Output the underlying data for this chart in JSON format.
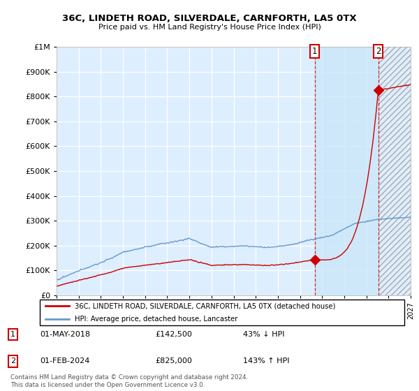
{
  "title": "36C, LINDETH ROAD, SILVERDALE, CARNFORTH, LA5 0TX",
  "subtitle": "Price paid vs. HM Land Registry's House Price Index (HPI)",
  "legend_label_red": "36C, LINDETH ROAD, SILVERDALE, CARNFORTH, LA5 0TX (detached house)",
  "legend_label_blue": "HPI: Average price, detached house, Lancaster",
  "annotation1_num": "1",
  "annotation1_date": "01-MAY-2018",
  "annotation1_price": "£142,500",
  "annotation1_pct": "43% ↓ HPI",
  "annotation2_num": "2",
  "annotation2_date": "01-FEB-2024",
  "annotation2_price": "£825,000",
  "annotation2_pct": "143% ↑ HPI",
  "footnote": "Contains HM Land Registry data © Crown copyright and database right 2024.\nThis data is licensed under the Open Government Licence v3.0.",
  "ylim": [
    0,
    1000000
  ],
  "yticks": [
    0,
    100000,
    200000,
    300000,
    400000,
    500000,
    600000,
    700000,
    800000,
    900000,
    1000000
  ],
  "start_year": 1995,
  "end_year": 2027,
  "point1_year": 2018.33,
  "point1_price": 142500,
  "point2_year": 2024.08,
  "point2_price": 825000,
  "red_color": "#cc0000",
  "blue_color": "#6699cc",
  "plot_bg": "#ddeeff",
  "plot_bg_after": "#cce0f5",
  "hatch_color": "#aabbcc"
}
